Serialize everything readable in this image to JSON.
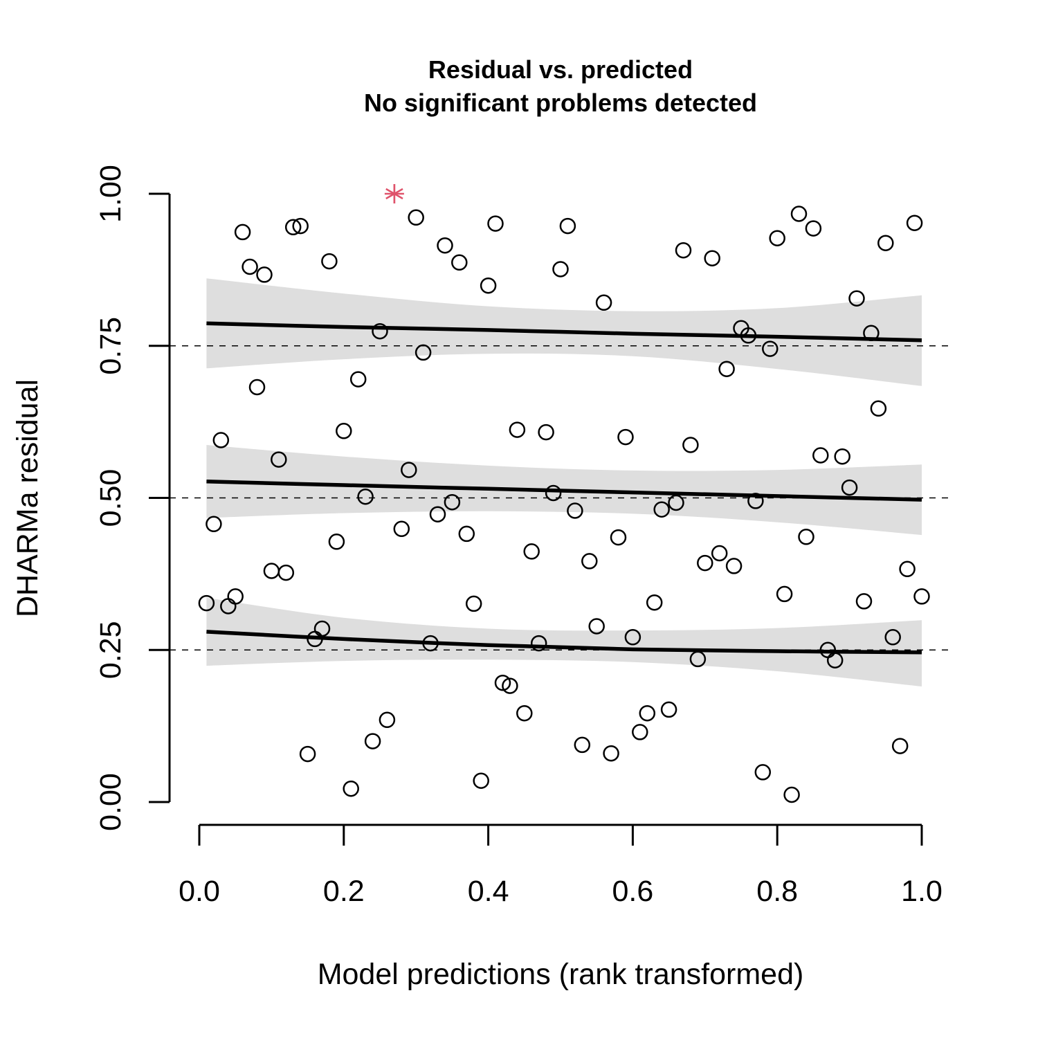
{
  "chart_data": {
    "type": "scatter",
    "title": "Residual vs. predicted",
    "subtitle": "No significant problems detected",
    "xlabel": "Model predictions (rank transformed)",
    "ylabel": "DHARMa residual",
    "xlim": [
      0.0,
      1.0
    ],
    "ylim": [
      0.0,
      1.0
    ],
    "x_ticks": [
      "0.0",
      "0.2",
      "0.4",
      "0.6",
      "0.8",
      "1.0"
    ],
    "y_ticks": [
      "0.00",
      "0.25",
      "0.50",
      "0.75",
      "1.00"
    ],
    "reference_lines": [
      0.25,
      0.5,
      0.75
    ],
    "band_color": "#dedede",
    "outlier_color": "#df536b",
    "points": [
      [
        0.01,
        0.327
      ],
      [
        0.02,
        0.457
      ],
      [
        0.03,
        0.595
      ],
      [
        0.04,
        0.322
      ],
      [
        0.05,
        0.338
      ],
      [
        0.06,
        0.937
      ],
      [
        0.07,
        0.88
      ],
      [
        0.08,
        0.682
      ],
      [
        0.09,
        0.867
      ],
      [
        0.1,
        0.38
      ],
      [
        0.11,
        0.563
      ],
      [
        0.12,
        0.377
      ],
      [
        0.13,
        0.945
      ],
      [
        0.14,
        0.947
      ],
      [
        0.15,
        0.079
      ],
      [
        0.16,
        0.268
      ],
      [
        0.17,
        0.285
      ],
      [
        0.18,
        0.889
      ],
      [
        0.19,
        0.428
      ],
      [
        0.2,
        0.61
      ],
      [
        0.21,
        0.022
      ],
      [
        0.22,
        0.695
      ],
      [
        0.23,
        0.502
      ],
      [
        0.24,
        0.1
      ],
      [
        0.25,
        0.774
      ],
      [
        0.26,
        0.135
      ],
      [
        0.28,
        0.449
      ],
      [
        0.29,
        0.546
      ],
      [
        0.3,
        0.961
      ],
      [
        0.31,
        0.739
      ],
      [
        0.32,
        0.261
      ],
      [
        0.33,
        0.473
      ],
      [
        0.34,
        0.915
      ],
      [
        0.35,
        0.493
      ],
      [
        0.36,
        0.887
      ],
      [
        0.37,
        0.441
      ],
      [
        0.38,
        0.326
      ],
      [
        0.39,
        0.035
      ],
      [
        0.4,
        0.849
      ],
      [
        0.41,
        0.951
      ],
      [
        0.42,
        0.196
      ],
      [
        0.43,
        0.191
      ],
      [
        0.44,
        0.612
      ],
      [
        0.45,
        0.146
      ],
      [
        0.46,
        0.412
      ],
      [
        0.47,
        0.261
      ],
      [
        0.48,
        0.608
      ],
      [
        0.49,
        0.508
      ],
      [
        0.5,
        0.876
      ],
      [
        0.51,
        0.947
      ],
      [
        0.52,
        0.479
      ],
      [
        0.53,
        0.094
      ],
      [
        0.54,
        0.396
      ],
      [
        0.55,
        0.289
      ],
      [
        0.56,
        0.821
      ],
      [
        0.57,
        0.08
      ],
      [
        0.58,
        0.435
      ],
      [
        0.59,
        0.6
      ],
      [
        0.6,
        0.271
      ],
      [
        0.61,
        0.115
      ],
      [
        0.62,
        0.146
      ],
      [
        0.63,
        0.328
      ],
      [
        0.64,
        0.481
      ],
      [
        0.65,
        0.152
      ],
      [
        0.66,
        0.492
      ],
      [
        0.67,
        0.907
      ],
      [
        0.68,
        0.587
      ],
      [
        0.69,
        0.235
      ],
      [
        0.7,
        0.393
      ],
      [
        0.71,
        0.894
      ],
      [
        0.72,
        0.409
      ],
      [
        0.73,
        0.712
      ],
      [
        0.74,
        0.388
      ],
      [
        0.75,
        0.779
      ],
      [
        0.76,
        0.767
      ],
      [
        0.77,
        0.495
      ],
      [
        0.78,
        0.049
      ],
      [
        0.79,
        0.745
      ],
      [
        0.8,
        0.927
      ],
      [
        0.81,
        0.342
      ],
      [
        0.82,
        0.012
      ],
      [
        0.83,
        0.967
      ],
      [
        0.84,
        0.436
      ],
      [
        0.85,
        0.943
      ],
      [
        0.86,
        0.57
      ],
      [
        0.87,
        0.25
      ],
      [
        0.88,
        0.233
      ],
      [
        0.89,
        0.568
      ],
      [
        0.9,
        0.517
      ],
      [
        0.91,
        0.828
      ],
      [
        0.92,
        0.33
      ],
      [
        0.93,
        0.771
      ],
      [
        0.94,
        0.647
      ],
      [
        0.95,
        0.919
      ],
      [
        0.96,
        0.271
      ],
      [
        0.97,
        0.092
      ],
      [
        0.98,
        0.383
      ],
      [
        0.99,
        0.952
      ],
      [
        1.0,
        0.338
      ]
    ],
    "outliers": [
      [
        0.27,
        1.0
      ]
    ],
    "quantile_fits": [
      {
        "x": [
          0.01,
          0.2,
          0.4,
          0.6,
          0.8,
          1.0
        ],
        "y": [
          0.28,
          0.268,
          0.258,
          0.251,
          0.248,
          0.246
        ],
        "lower": [
          0.224,
          0.232,
          0.234,
          0.23,
          0.215,
          0.19
        ],
        "upper": [
          0.336,
          0.303,
          0.285,
          0.282,
          0.286,
          0.299
        ]
      },
      {
        "x": [
          0.01,
          0.2,
          0.4,
          0.6,
          0.8,
          1.0
        ],
        "y": [
          0.527,
          0.521,
          0.515,
          0.509,
          0.503,
          0.497
        ],
        "lower": [
          0.467,
          0.475,
          0.478,
          0.474,
          0.46,
          0.439
        ],
        "upper": [
          0.587,
          0.568,
          0.553,
          0.545,
          0.546,
          0.555
        ]
      },
      {
        "x": [
          0.01,
          0.2,
          0.4,
          0.6,
          0.8,
          1.0
        ],
        "y": [
          0.787,
          0.781,
          0.776,
          0.77,
          0.765,
          0.759
        ],
        "lower": [
          0.713,
          0.728,
          0.737,
          0.733,
          0.712,
          0.684
        ],
        "upper": [
          0.861,
          0.836,
          0.815,
          0.807,
          0.812,
          0.833
        ]
      }
    ]
  }
}
